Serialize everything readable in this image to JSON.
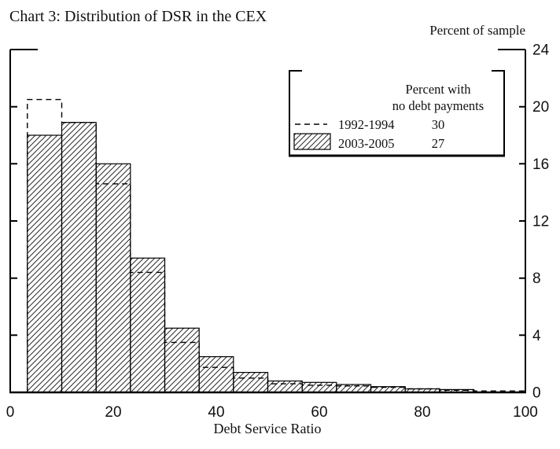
{
  "title": "Chart 3: Distribution of DSR in the CEX",
  "right_axis_label": "Percent of sample",
  "x_axis_label": "Debt Service Ratio",
  "ink_color": "#000000",
  "background_color": "#ffffff",
  "legend": {
    "header_line1": "Percent with",
    "header_line2": "no debt payments",
    "rows": [
      {
        "swatch": "dashed-line",
        "label": "1992-1994",
        "value": "30"
      },
      {
        "swatch": "hatched-box",
        "label": "2003-2005",
        "value": "27"
      }
    ]
  },
  "chart_data": {
    "type": "bar",
    "subtype": "histogram",
    "title": "Chart 3: Distribution of DSR in the CEX",
    "xlabel": "Debt Service Ratio",
    "ylabel": "Percent of sample",
    "xlim": [
      0,
      100
    ],
    "ylim": [
      0,
      24
    ],
    "x_ticks": [
      0,
      20,
      40,
      60,
      80,
      100
    ],
    "y_ticks": [
      0,
      4,
      8,
      12,
      16,
      20,
      24
    ],
    "grid": false,
    "legend_position": "upper right",
    "bin_edges": [
      3.33,
      10,
      16.67,
      23.33,
      30,
      36.67,
      43.33,
      50,
      56.67,
      63.33,
      70,
      76.67,
      83.33,
      90
    ],
    "series": [
      {
        "name": "1992-1994",
        "style": "dashed-step-outline",
        "percent_with_no_debt_payments": 30,
        "values": [
          20.5,
          18.9,
          14.6,
          8.4,
          3.5,
          1.75,
          1.0,
          0.6,
          0.5,
          0.45,
          0.35,
          0.25,
          0.15
        ],
        "tail": {
          "from": 90,
          "to": 100,
          "value": 0.1
        }
      },
      {
        "name": "2003-2005",
        "style": "hatched-bars",
        "percent_with_no_debt_payments": 27,
        "values": [
          18.0,
          18.9,
          16.0,
          9.4,
          4.5,
          2.5,
          1.4,
          0.8,
          0.7,
          0.55,
          0.4,
          0.25,
          0.2
        ]
      }
    ]
  }
}
